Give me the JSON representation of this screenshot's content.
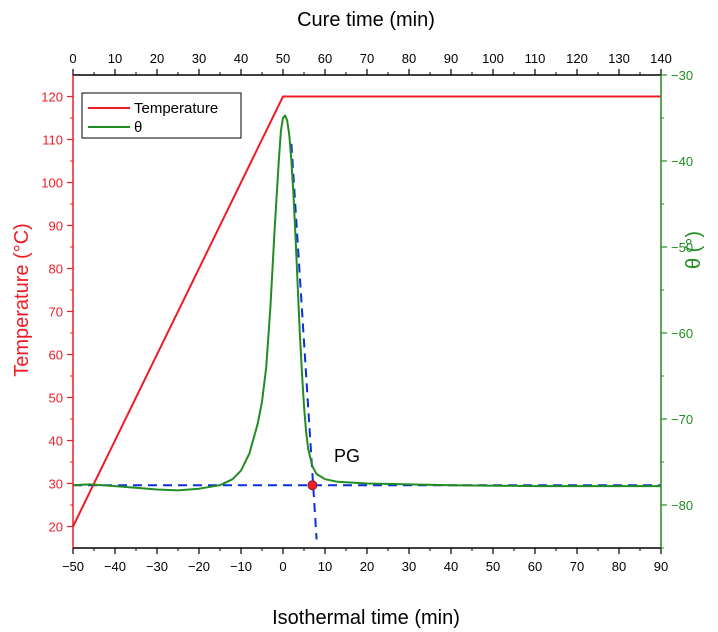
{
  "chart_data": {
    "type": "line",
    "x_bottom": {
      "label": "Isothermal time (min)",
      "range": [
        -50,
        90
      ],
      "ticks": [
        -50,
        -40,
        -30,
        -20,
        -10,
        0,
        10,
        20,
        30,
        40,
        50,
        60,
        70,
        80,
        90
      ]
    },
    "x_top": {
      "label": "Cure time (min)",
      "range": [
        0,
        140
      ],
      "ticks": [
        0,
        10,
        20,
        30,
        40,
        50,
        60,
        70,
        80,
        90,
        100,
        110,
        120,
        130,
        140
      ]
    },
    "y_left": {
      "label": "Temperature (°C)",
      "range": [
        15,
        125
      ],
      "ticks": [
        20,
        30,
        40,
        50,
        60,
        70,
        80,
        90,
        100,
        110,
        120
      ],
      "color": "#ee1c25"
    },
    "y_right": {
      "label": "θ (°)",
      "range": [
        -85,
        -30
      ],
      "ticks": [
        -80,
        -70,
        -60,
        -50,
        -40,
        -30
      ],
      "color": "#218c21"
    },
    "series": [
      {
        "name": "Temperature",
        "axis": "left",
        "color": "#ee1c25",
        "points": [
          [
            -50,
            20
          ],
          [
            0,
            120
          ],
          [
            90,
            120
          ]
        ]
      },
      {
        "name": "θ",
        "axis": "right",
        "color": "#218c21",
        "points": [
          [
            -50,
            -77.7
          ],
          [
            -46,
            -77.6
          ],
          [
            -40,
            -77.8
          ],
          [
            -35,
            -78.0
          ],
          [
            -30,
            -78.2
          ],
          [
            -25,
            -78.3
          ],
          [
            -20,
            -78.1
          ],
          [
            -15,
            -77.7
          ],
          [
            -12,
            -77.0
          ],
          [
            -10,
            -76.0
          ],
          [
            -8,
            -74.0
          ],
          [
            -6,
            -70.5
          ],
          [
            -5,
            -68.0
          ],
          [
            -4,
            -64.0
          ],
          [
            -3,
            -57.0
          ],
          [
            -2,
            -48.0
          ],
          [
            -1,
            -40.0
          ],
          [
            -0.5,
            -36.5
          ],
          [
            0,
            -35.0
          ],
          [
            0.5,
            -34.7
          ],
          [
            1,
            -35.3
          ],
          [
            1.5,
            -37.0
          ],
          [
            2,
            -40.0
          ],
          [
            2.5,
            -44.0
          ],
          [
            3,
            -49.0
          ],
          [
            3.5,
            -54.5
          ],
          [
            4,
            -60.0
          ],
          [
            4.5,
            -64.5
          ],
          [
            5,
            -68.5
          ],
          [
            5.5,
            -71.5
          ],
          [
            6,
            -73.5
          ],
          [
            7,
            -75.5
          ],
          [
            8,
            -76.4
          ],
          [
            10,
            -77.0
          ],
          [
            13,
            -77.3
          ],
          [
            20,
            -77.5
          ],
          [
            30,
            -77.6
          ],
          [
            40,
            -77.7
          ],
          [
            60,
            -77.8
          ],
          [
            90,
            -77.8
          ]
        ]
      }
    ],
    "tangent_lines": {
      "color": "#0b2ee0",
      "horizontal": {
        "x": [
          -50,
          90
        ],
        "y": -77.7
      },
      "steep": {
        "x1": 2,
        "y1": -38,
        "x2": 8,
        "y2": -84
      }
    },
    "annotation": {
      "text": "PG",
      "point": {
        "x": 7,
        "y": -77.7
      },
      "marker_color": "#ee1c25"
    },
    "legend": {
      "placement": "top-left",
      "entries": [
        "Temperature",
        "θ"
      ]
    }
  }
}
